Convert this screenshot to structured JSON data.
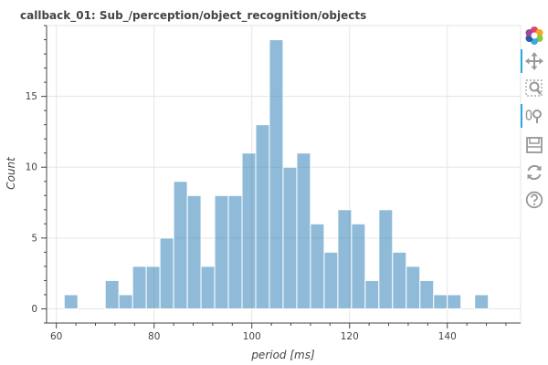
{
  "chart_data": {
    "type": "bar",
    "title": "callback_01: Sub_/perception/object_recognition/objects",
    "xlabel": "period [ms]",
    "ylabel": "Count",
    "xlim": [
      58,
      155
    ],
    "ylim": [
      -1,
      20
    ],
    "xticks": [
      60,
      80,
      100,
      120,
      140
    ],
    "yticks": [
      0,
      5,
      10,
      15
    ],
    "grid": true,
    "bin_width": 2.8,
    "bins": [
      {
        "x0": 61.6,
        "x1": 64.4,
        "count": 1
      },
      {
        "x0": 64.4,
        "x1": 67.2,
        "count": 0
      },
      {
        "x0": 67.2,
        "x1": 70.0,
        "count": 0
      },
      {
        "x0": 70.0,
        "x1": 72.8,
        "count": 2
      },
      {
        "x0": 72.8,
        "x1": 75.6,
        "count": 1
      },
      {
        "x0": 75.6,
        "x1": 78.4,
        "count": 3
      },
      {
        "x0": 78.4,
        "x1": 81.2,
        "count": 3
      },
      {
        "x0": 81.2,
        "x1": 84.0,
        "count": 5
      },
      {
        "x0": 84.0,
        "x1": 86.8,
        "count": 9
      },
      {
        "x0": 86.8,
        "x1": 89.6,
        "count": 8
      },
      {
        "x0": 89.6,
        "x1": 92.4,
        "count": 3
      },
      {
        "x0": 92.4,
        "x1": 95.2,
        "count": 8
      },
      {
        "x0": 95.2,
        "x1": 98.0,
        "count": 8
      },
      {
        "x0": 98.0,
        "x1": 100.8,
        "count": 11
      },
      {
        "x0": 100.8,
        "x1": 103.6,
        "count": 13
      },
      {
        "x0": 103.6,
        "x1": 106.4,
        "count": 19
      },
      {
        "x0": 106.4,
        "x1": 109.2,
        "count": 10
      },
      {
        "x0": 109.2,
        "x1": 112.0,
        "count": 11
      },
      {
        "x0": 112.0,
        "x1": 114.8,
        "count": 6
      },
      {
        "x0": 114.8,
        "x1": 117.6,
        "count": 4
      },
      {
        "x0": 117.6,
        "x1": 120.4,
        "count": 7
      },
      {
        "x0": 120.4,
        "x1": 123.2,
        "count": 6
      },
      {
        "x0": 123.2,
        "x1": 126.0,
        "count": 2
      },
      {
        "x0": 126.0,
        "x1": 128.8,
        "count": 7
      },
      {
        "x0": 128.8,
        "x1": 131.6,
        "count": 4
      },
      {
        "x0": 131.6,
        "x1": 134.4,
        "count": 3
      },
      {
        "x0": 134.4,
        "x1": 137.2,
        "count": 2
      },
      {
        "x0": 137.2,
        "x1": 140.0,
        "count": 1
      },
      {
        "x0": 140.0,
        "x1": 142.8,
        "count": 1
      },
      {
        "x0": 142.8,
        "x1": 145.6,
        "count": 0
      },
      {
        "x0": 145.6,
        "x1": 148.4,
        "count": 1
      }
    ],
    "bar_color": "#1f77b4",
    "bar_alpha": 0.5
  },
  "toolbar": {
    "tools": [
      {
        "name": "bokeh-logo-icon",
        "interactable": true,
        "active": false
      },
      {
        "name": "pan-tool-icon",
        "interactable": true,
        "active": true
      },
      {
        "name": "box-zoom-tool-icon",
        "interactable": true,
        "active": false
      },
      {
        "name": "wheel-zoom-tool-icon",
        "interactable": true,
        "active": true
      },
      {
        "name": "save-tool-icon",
        "interactable": true,
        "active": false
      },
      {
        "name": "reset-tool-icon",
        "interactable": true,
        "active": false
      },
      {
        "name": "help-tool-icon",
        "interactable": true,
        "active": false
      }
    ]
  }
}
